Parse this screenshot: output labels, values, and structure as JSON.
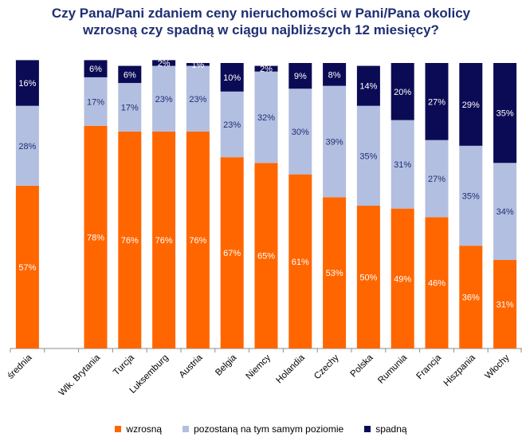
{
  "chart_data": {
    "type": "bar",
    "stacked": true,
    "title_lines": [
      "Czy Pana/Pani zdaniem ceny nieruchomości w Pani/Pana okolicy",
      "wzrosną czy spadną w ciągu najbliższych 12 miesięcy?"
    ],
    "categories": [
      "średnia",
      "",
      "Wlk. Brytania",
      "Turcja",
      "Luksemburg",
      "Austria",
      "Belgia",
      "Niemcy",
      "Holandia",
      "Czechy",
      "Polska",
      "Rumunia",
      "Francja",
      "Hiszpania",
      "Włochy"
    ],
    "series": [
      {
        "name": "wzrosną",
        "color": "#ff6600",
        "label_color": "#ffffff",
        "values": [
          57,
          null,
          78,
          76,
          76,
          76,
          67,
          65,
          61,
          53,
          50,
          49,
          46,
          36,
          31
        ]
      },
      {
        "name": "pozostaną na tym samym poziomie",
        "color": "#b3bfe0",
        "label_color": "#1f2f73",
        "values": [
          28,
          null,
          17,
          17,
          23,
          23,
          23,
          32,
          30,
          39,
          35,
          31,
          27,
          35,
          34
        ]
      },
      {
        "name": "spadną",
        "color": "#0b0b55",
        "label_color": "#ffffff",
        "values": [
          16,
          null,
          6,
          6,
          2,
          1,
          10,
          2,
          9,
          8,
          14,
          20,
          27,
          29,
          35
        ]
      }
    ],
    "ylim": [
      0,
      100
    ],
    "xlabel": "",
    "ylabel": "",
    "value_suffix": "%",
    "legend_position": "bottom"
  }
}
